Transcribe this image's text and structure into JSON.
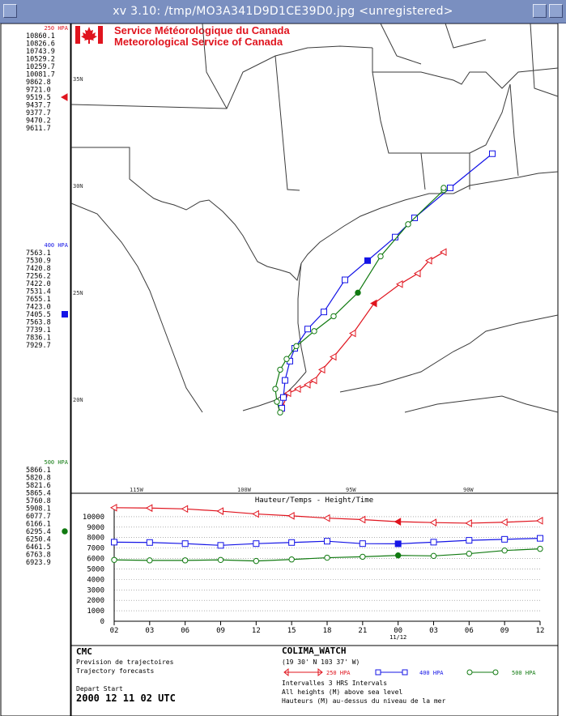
{
  "window": {
    "title": "xv 3.10: /tmp/MO3A341D9D1CE39D0.jpg <unregistered>"
  },
  "brand": {
    "line1": "Service Météorologique du Canada",
    "line2": "Meteorological Service of Canada"
  },
  "colors": {
    "red": "#e0141e",
    "blue": "#1414e6",
    "green": "#117a11",
    "map": "#3a3a3a",
    "grid": "#808080",
    "titlebar": "#7a8fc0"
  },
  "side_panel": {
    "groups": [
      {
        "level": "250 HPA",
        "color": "#e0141e",
        "values": [
          "10860.1",
          "10826.6",
          "10743.9",
          "10529.2",
          "10259.7",
          "10081.7",
          "9862.8",
          "9721.0",
          "9519.5",
          "9437.7",
          "9377.7",
          "9470.2",
          "9611.7"
        ],
        "marker": "triangle"
      },
      {
        "level": "400 HPA",
        "color": "#1414e6",
        "values": [
          "7563.1",
          "7530.9",
          "7420.8",
          "7256.2",
          "7422.0",
          "7531.4",
          "7655.1",
          "7423.0",
          "7405.5",
          "7563.8",
          "7739.1",
          "7836.1",
          "7929.7"
        ],
        "marker": "square"
      },
      {
        "level": "500 HPA",
        "color": "#117a11",
        "values": [
          "5866.1",
          "5820.8",
          "5821.6",
          "5865.4",
          "5760.8",
          "5908.1",
          "6077.7",
          "6166.1",
          "6295.4",
          "6250.4",
          "6461.5",
          "6763.8",
          "6923.9"
        ],
        "marker": "circle"
      }
    ]
  },
  "map": {
    "lat_labels": [
      "35N",
      "30N",
      "25N",
      "20N"
    ],
    "lon_labels": [
      "115W",
      "100W",
      "95W",
      "90W"
    ],
    "start": {
      "lat": 19.5,
      "lon": -103.617
    }
  },
  "height_chart": {
    "title": "Hauteur/Temps - Height/Time",
    "y_ticks": [
      "10000",
      "9000",
      "8000",
      "7000",
      "6000",
      "5000",
      "4000",
      "3000",
      "2000",
      "1000",
      "0"
    ],
    "x_ticks": [
      "02",
      "03",
      "06",
      "09",
      "12",
      "15",
      "18",
      "21",
      "00",
      "03",
      "06",
      "09",
      "12"
    ],
    "date_label": "11/12"
  },
  "chart_data": {
    "type": "line",
    "title": "Hauteur/Temps - Height/Time",
    "x": [
      "02",
      "03",
      "06",
      "09",
      "12",
      "15",
      "18",
      "21",
      "00",
      "03",
      "06",
      "09",
      "12"
    ],
    "ylim": [
      0,
      11000
    ],
    "series": [
      {
        "name": "250 HPA",
        "values": [
          10860.1,
          10826.6,
          10743.9,
          10529.2,
          10259.7,
          10081.7,
          9862.8,
          9721.0,
          9519.5,
          9437.7,
          9377.7,
          9470.2,
          9611.7
        ]
      },
      {
        "name": "400 HPA",
        "values": [
          7563.1,
          7530.9,
          7420.8,
          7256.2,
          7422.0,
          7531.4,
          7655.1,
          7423.0,
          7405.5,
          7563.8,
          7739.1,
          7836.1,
          7929.7
        ]
      },
      {
        "name": "500 HPA",
        "values": [
          5866.1,
          5820.8,
          5821.6,
          5865.4,
          5760.8,
          5908.1,
          6077.7,
          6166.1,
          6295.4,
          6250.4,
          6461.5,
          6763.8,
          6923.9
        ]
      }
    ],
    "trajectories": [
      {
        "name": "250 HPA",
        "lat": [
          19.7,
          20.4,
          20.6,
          20.8,
          21.0,
          21.5,
          22.1,
          23.2,
          24.6,
          25.5,
          26.0,
          26.6,
          27.0
        ]
      },
      {
        "name": "400 HPA",
        "lat": [
          19.7,
          20.2,
          21.0,
          21.9,
          22.5,
          23.4,
          24.2,
          25.7,
          26.6,
          27.7,
          28.6,
          30.0,
          31.6
        ]
      },
      {
        "name": "500 HPA",
        "lat": [
          19.5,
          20.0,
          20.6,
          21.5,
          22.0,
          22.6,
          23.3,
          24.0,
          25.1,
          26.8,
          28.3,
          29.9,
          30.0
        ]
      }
    ]
  },
  "footer": {
    "cmc": "CMC",
    "prevision": "Prevision de trajectoires",
    "forecasts": "Trajectory forecasts",
    "depart": "Depart Start",
    "datetime": "2000 12 11 02 UTC",
    "station": "COLIMA_WATCH",
    "coords": "(19 30' N 103 37' W)",
    "legend": [
      "250 HPA",
      "400 HPA",
      "500 HPA"
    ],
    "intervals": "Intervalles 3 HRS Intervals",
    "note1": "All heights (M) above sea level",
    "note2": "Hauteurs (M) au-dessus du niveau de la mer"
  }
}
